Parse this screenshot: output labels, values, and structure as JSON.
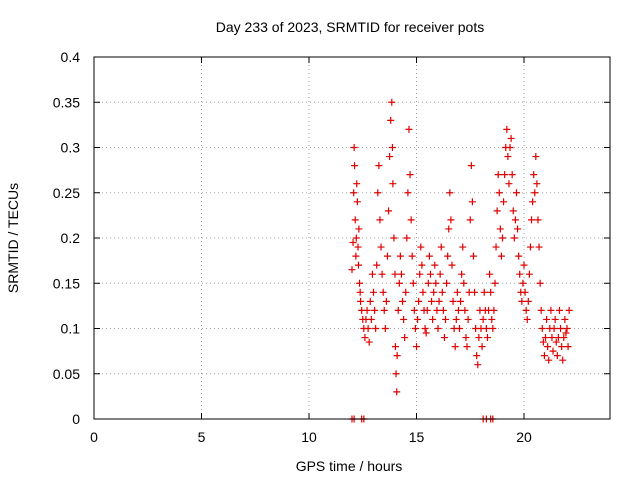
{
  "chart_data": {
    "type": "scatter",
    "title": "Day 233 of 2023, SRMTID for receiver pots",
    "xlabel": "GPS time / hours",
    "ylabel": "SRMTID / TECUs",
    "xlim": [
      0,
      24
    ],
    "ylim": [
      0,
      0.4
    ],
    "xticks": [
      0,
      5,
      10,
      15,
      20
    ],
    "xtick_labels": [
      "0",
      "5",
      "10",
      "15",
      "20"
    ],
    "yticks": [
      0,
      0.05,
      0.1,
      0.15,
      0.2,
      0.25,
      0.3,
      0.35,
      0.4
    ],
    "ytick_labels": [
      "0",
      "0.05",
      "0.1",
      "0.15",
      "0.2",
      "0.25",
      "0.3",
      "0.35",
      "0.4"
    ],
    "grid": true,
    "marker": "plus",
    "color": "#e00000",
    "series": [
      {
        "points": [
          [
            12.0,
            0.165
          ],
          [
            12.05,
            0.195
          ],
          [
            12.08,
            0.25
          ],
          [
            12.1,
            0.3
          ],
          [
            12.12,
            0.28
          ],
          [
            12.15,
            0.22
          ],
          [
            12.18,
            0.18
          ],
          [
            12.2,
            0.2
          ],
          [
            12.22,
            0.26
          ],
          [
            12.25,
            0.24
          ],
          [
            12.28,
            0.19
          ],
          [
            12.3,
            0.17
          ],
          [
            12.32,
            0.21
          ],
          [
            12.35,
            0.15
          ],
          [
            12.38,
            0.14
          ],
          [
            12.4,
            0.13
          ],
          [
            12.45,
            0.12
          ],
          [
            12.5,
            0.11
          ],
          [
            12.55,
            0.1
          ],
          [
            12.6,
            0.09
          ],
          [
            12.65,
            0.11
          ],
          [
            12.7,
            0.12
          ],
          [
            12.75,
            0.1
          ],
          [
            12.8,
            0.085
          ],
          [
            12.85,
            0.13
          ],
          [
            12.9,
            0.11
          ],
          [
            12.95,
            0.16
          ],
          [
            13.0,
            0.14
          ],
          [
            13.05,
            0.12
          ],
          [
            13.1,
            0.1
          ],
          [
            13.15,
            0.17
          ],
          [
            13.2,
            0.25
          ],
          [
            13.25,
            0.28
          ],
          [
            13.3,
            0.22
          ],
          [
            13.35,
            0.19
          ],
          [
            13.4,
            0.16
          ],
          [
            13.45,
            0.14
          ],
          [
            13.5,
            0.12
          ],
          [
            13.55,
            0.1
          ],
          [
            13.6,
            0.13
          ],
          [
            13.65,
            0.18
          ],
          [
            13.7,
            0.23
          ],
          [
            13.75,
            0.29
          ],
          [
            13.8,
            0.33
          ],
          [
            13.85,
            0.35
          ],
          [
            13.88,
            0.3
          ],
          [
            13.9,
            0.26
          ],
          [
            13.95,
            0.2
          ],
          [
            14.0,
            0.16
          ],
          [
            14.02,
            0.08
          ],
          [
            14.05,
            0.05
          ],
          [
            14.08,
            0.03
          ],
          [
            14.1,
            0.07
          ],
          [
            14.15,
            0.12
          ],
          [
            14.2,
            0.15
          ],
          [
            14.25,
            0.18
          ],
          [
            14.3,
            0.16
          ],
          [
            14.35,
            0.13
          ],
          [
            14.4,
            0.11
          ],
          [
            14.45,
            0.09
          ],
          [
            14.5,
            0.14
          ],
          [
            14.55,
            0.2
          ],
          [
            14.6,
            0.25
          ],
          [
            14.65,
            0.32
          ],
          [
            14.7,
            0.27
          ],
          [
            14.75,
            0.22
          ],
          [
            14.8,
            0.18
          ],
          [
            14.85,
            0.15
          ],
          [
            14.9,
            0.12
          ],
          [
            14.95,
            0.1
          ],
          [
            15.0,
            0.08
          ],
          [
            15.05,
            0.11
          ],
          [
            15.1,
            0.13
          ],
          [
            15.15,
            0.16
          ],
          [
            15.2,
            0.19
          ],
          [
            15.25,
            0.17
          ],
          [
            15.3,
            0.14
          ],
          [
            15.35,
            0.12
          ],
          [
            15.4,
            0.1
          ],
          [
            15.45,
            0.095
          ],
          [
            15.5,
            0.12
          ],
          [
            15.55,
            0.15
          ],
          [
            15.6,
            0.18
          ],
          [
            15.65,
            0.16
          ],
          [
            15.7,
            0.13
          ],
          [
            15.75,
            0.11
          ],
          [
            15.8,
            0.14
          ],
          [
            15.85,
            0.17
          ],
          [
            15.9,
            0.15
          ],
          [
            15.95,
            0.12
          ],
          [
            16.0,
            0.1
          ],
          [
            16.05,
            0.13
          ],
          [
            16.1,
            0.16
          ],
          [
            16.15,
            0.19
          ],
          [
            16.2,
            0.14
          ],
          [
            16.25,
            0.12
          ],
          [
            16.3,
            0.09
          ],
          [
            16.35,
            0.11
          ],
          [
            16.4,
            0.15
          ],
          [
            16.45,
            0.18
          ],
          [
            16.5,
            0.21
          ],
          [
            16.55,
            0.25
          ],
          [
            16.6,
            0.22
          ],
          [
            16.65,
            0.17
          ],
          [
            16.7,
            0.13
          ],
          [
            16.75,
            0.1
          ],
          [
            16.8,
            0.08
          ],
          [
            16.85,
            0.11
          ],
          [
            16.9,
            0.14
          ],
          [
            16.95,
            0.12
          ],
          [
            17.0,
            0.1
          ],
          [
            17.05,
            0.13
          ],
          [
            17.1,
            0.16
          ],
          [
            17.15,
            0.19
          ],
          [
            17.2,
            0.15
          ],
          [
            17.25,
            0.12
          ],
          [
            17.3,
            0.09
          ],
          [
            17.35,
            0.08
          ],
          [
            17.4,
            0.11
          ],
          [
            17.45,
            0.14
          ],
          [
            17.5,
            0.22
          ],
          [
            17.55,
            0.28
          ],
          [
            17.6,
            0.24
          ],
          [
            17.65,
            0.18
          ],
          [
            17.7,
            0.14
          ],
          [
            17.75,
            0.1
          ],
          [
            17.8,
            0.07
          ],
          [
            17.85,
            0.06
          ],
          [
            17.9,
            0.09
          ],
          [
            17.95,
            0.12
          ],
          [
            18.0,
            0.1
          ],
          [
            18.05,
            0.08
          ],
          [
            18.1,
            0.11
          ],
          [
            18.15,
            0.14
          ],
          [
            18.2,
            0.12
          ],
          [
            18.25,
            0.1
          ],
          [
            18.3,
            0.09
          ],
          [
            18.35,
            0.12
          ],
          [
            18.4,
            0.16
          ],
          [
            18.45,
            0.14
          ],
          [
            18.5,
            0.11
          ],
          [
            18.55,
            0.1
          ],
          [
            18.6,
            0.12
          ],
          [
            18.65,
            0.15
          ],
          [
            18.7,
            0.19
          ],
          [
            18.75,
            0.23
          ],
          [
            18.8,
            0.27
          ],
          [
            18.85,
            0.25
          ],
          [
            18.9,
            0.21
          ],
          [
            18.95,
            0.18
          ],
          [
            19.0,
            0.2
          ],
          [
            19.05,
            0.24
          ],
          [
            19.1,
            0.27
          ],
          [
            19.15,
            0.3
          ],
          [
            19.2,
            0.32
          ],
          [
            19.25,
            0.29
          ],
          [
            19.3,
            0.26
          ],
          [
            19.35,
            0.3
          ],
          [
            19.4,
            0.31
          ],
          [
            19.45,
            0.27
          ],
          [
            19.5,
            0.23
          ],
          [
            19.55,
            0.2
          ],
          [
            19.6,
            0.22
          ],
          [
            19.65,
            0.25
          ],
          [
            19.7,
            0.21
          ],
          [
            19.75,
            0.18
          ],
          [
            19.8,
            0.16
          ],
          [
            19.85,
            0.14
          ],
          [
            19.9,
            0.13
          ],
          [
            19.95,
            0.15
          ],
          [
            20.0,
            0.17
          ],
          [
            20.05,
            0.14
          ],
          [
            20.1,
            0.12
          ],
          [
            20.15,
            0.11
          ],
          [
            20.2,
            0.13
          ],
          [
            20.25,
            0.16
          ],
          [
            20.3,
            0.19
          ],
          [
            20.35,
            0.22
          ],
          [
            20.4,
            0.24
          ],
          [
            20.45,
            0.27
          ],
          [
            20.5,
            0.25
          ],
          [
            20.55,
            0.29
          ],
          [
            20.6,
            0.26
          ],
          [
            20.65,
            0.22
          ],
          [
            20.7,
            0.19
          ],
          [
            20.75,
            0.15
          ],
          [
            20.8,
            0.12
          ],
          [
            20.85,
            0.1
          ],
          [
            20.9,
            0.085
          ],
          [
            20.95,
            0.07
          ],
          [
            21.0,
            0.09
          ],
          [
            21.05,
            0.11
          ],
          [
            21.1,
            0.08
          ],
          [
            21.15,
            0.065
          ],
          [
            21.2,
            0.1
          ],
          [
            21.25,
            0.12
          ],
          [
            21.3,
            0.09
          ],
          [
            21.35,
            0.075
          ],
          [
            21.4,
            0.1
          ],
          [
            21.45,
            0.11
          ],
          [
            21.5,
            0.085
          ],
          [
            21.55,
            0.07
          ],
          [
            21.6,
            0.09
          ],
          [
            21.65,
            0.12
          ],
          [
            21.7,
            0.1
          ],
          [
            21.75,
            0.08
          ],
          [
            21.8,
            0.065
          ],
          [
            21.85,
            0.09
          ],
          [
            21.9,
            0.11
          ],
          [
            21.95,
            0.095
          ],
          [
            22.0,
            0.1
          ],
          [
            22.05,
            0.08
          ],
          [
            22.1,
            0.12
          ]
        ]
      },
      {
        "points": [
          [
            12.0,
            0
          ],
          [
            12.1,
            0
          ],
          [
            12.45,
            0
          ],
          [
            12.55,
            0
          ],
          [
            18.1,
            0
          ],
          [
            18.25,
            0
          ],
          [
            18.45,
            0
          ],
          [
            18.55,
            0
          ]
        ]
      }
    ]
  }
}
